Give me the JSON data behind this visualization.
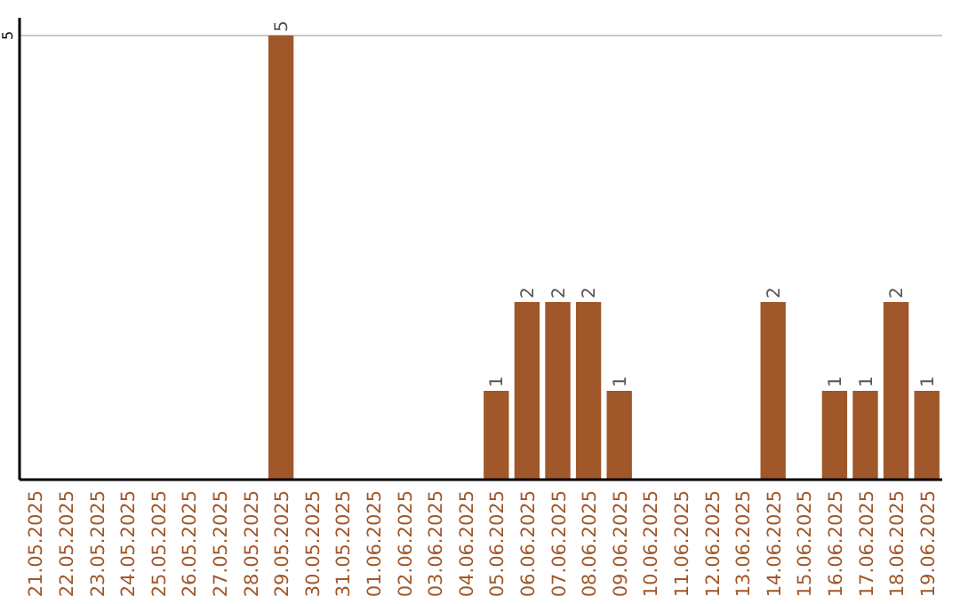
{
  "chart_data": {
    "type": "bar",
    "categories": [
      "21.05.2025",
      "22.05.2025",
      "23.05.2025",
      "24.05.2025",
      "25.05.2025",
      "26.05.2025",
      "27.05.2025",
      "28.05.2025",
      "29.05.2025",
      "30.05.2025",
      "31.05.2025",
      "01.06.2025",
      "02.06.2025",
      "03.06.2025",
      "04.06.2025",
      "05.06.2025",
      "06.06.2025",
      "07.06.2025",
      "08.06.2025",
      "09.06.2025",
      "10.06.2025",
      "11.06.2025",
      "12.06.2025",
      "13.06.2025",
      "14.06.2025",
      "15.06.2025",
      "16.06.2025",
      "17.06.2025",
      "18.06.2025",
      "19.06.2025"
    ],
    "values": [
      0,
      0,
      0,
      0,
      0,
      0,
      0,
      0,
      5,
      0,
      0,
      0,
      0,
      0,
      0,
      1,
      2,
      2,
      2,
      1,
      0,
      0,
      0,
      0,
      2,
      0,
      1,
      1,
      2,
      1
    ],
    "value_labels": [
      null,
      null,
      null,
      null,
      null,
      null,
      null,
      null,
      "5",
      null,
      null,
      null,
      null,
      null,
      null,
      "1",
      "2",
      "2",
      "2",
      "1",
      null,
      null,
      null,
      null,
      "2",
      null,
      "1",
      "1",
      "2",
      "1"
    ],
    "color": "#a0572a",
    "ylim": [
      0,
      5.2
    ],
    "yticks": [
      5
    ],
    "grid": "y"
  }
}
